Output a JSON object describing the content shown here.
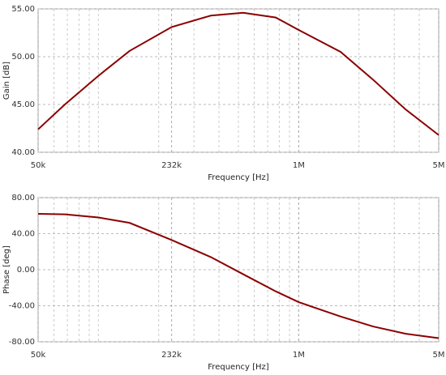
{
  "chart_data": [
    {
      "type": "line",
      "xlabel": "Frequency [Hz]",
      "ylabel": "Gain [dB]",
      "xscale": "log",
      "grid": true,
      "x": [
        50000,
        68000,
        100000,
        143000,
        232000,
        364000,
        528000,
        768000,
        1000000,
        1620000,
        2350000,
        3410000,
        5000000
      ],
      "series": [
        {
          "color": "#8b0000",
          "values": [
            42.4,
            45.0,
            48.0,
            50.6,
            53.1,
            54.3,
            54.6,
            54.1,
            52.8,
            50.5,
            47.6,
            44.5,
            41.8
          ]
        }
      ],
      "xlim": [
        50000,
        5000000
      ],
      "xticks": [
        {
          "value": 50000,
          "label": "50k"
        },
        {
          "value": 232000,
          "label": "232k"
        },
        {
          "value": 1000000,
          "label": "1M"
        },
        {
          "value": 5000000,
          "label": "5M"
        }
      ],
      "ylim": [
        40,
        55
      ],
      "yticks": [
        {
          "value": 55,
          "label": "55.00"
        },
        {
          "value": 50,
          "label": "50.00"
        },
        {
          "value": 45,
          "label": "45.00"
        },
        {
          "value": 40,
          "label": "40.00"
        }
      ]
    },
    {
      "type": "line",
      "xlabel": "Frequency [Hz]",
      "ylabel": "Phase [deg]",
      "xscale": "log",
      "grid": true,
      "x": [
        50000,
        68000,
        100000,
        143000,
        232000,
        364000,
        528000,
        768000,
        1000000,
        1620000,
        2350000,
        3410000,
        5000000
      ],
      "series": [
        {
          "color": "#8b0000",
          "values": [
            62,
            61.5,
            58,
            52,
            33,
            14,
            -5,
            -24,
            -36,
            -52,
            -63,
            -71,
            -76
          ]
        }
      ],
      "xlim": [
        50000,
        5000000
      ],
      "xticks": [
        {
          "value": 50000,
          "label": "50k"
        },
        {
          "value": 232000,
          "label": "232k"
        },
        {
          "value": 1000000,
          "label": "1M"
        },
        {
          "value": 5000000,
          "label": "5M"
        }
      ],
      "ylim": [
        -80,
        80
      ],
      "yticks": [
        {
          "value": 80,
          "label": "80.00"
        },
        {
          "value": 40,
          "label": "40.00"
        },
        {
          "value": 0,
          "label": "0.00"
        },
        {
          "value": -40,
          "label": "-40.00"
        },
        {
          "value": -80,
          "label": "-80.00"
        }
      ]
    }
  ]
}
